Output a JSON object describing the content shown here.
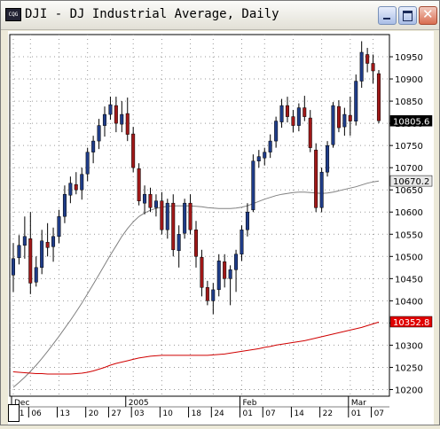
{
  "window": {
    "icon_label": "CQG",
    "title": "DJI - DJ Industrial Average, Daily"
  },
  "chart_data": {
    "type": "candlestick",
    "symbol": "DJI",
    "title": "DJ Industrial Average, Daily",
    "price_axis": {
      "ticks": [
        "10950",
        "10900",
        "10850",
        "10800",
        "10750",
        "10700",
        "10650",
        "10600",
        "10550",
        "10500",
        "10450",
        "10400",
        "10350",
        "10300",
        "10250",
        "10200"
      ],
      "ylim": [
        10185,
        11000
      ],
      "side": "right"
    },
    "last_price": "10805.6",
    "markers": [
      {
        "label": "10670.2",
        "value": 10670.2,
        "color": "#e8e8e8",
        "text_color": "#000000"
      },
      {
        "label": "10352.8",
        "value": 10352.8,
        "color": "#e00000",
        "text_color": "#ffffff"
      }
    ],
    "time_axis": {
      "months": [
        {
          "label": "Dec",
          "index": 0
        },
        {
          "label": "2005",
          "index": 20
        },
        {
          "label": "Feb",
          "index": 40
        },
        {
          "label": "Mar",
          "index": 59
        }
      ],
      "days": [
        {
          "label": "01",
          "index": 0
        },
        {
          "label": "06",
          "index": 3
        },
        {
          "label": "13",
          "index": 8
        },
        {
          "label": "20",
          "index": 13
        },
        {
          "label": "27",
          "index": 17
        },
        {
          "label": "03",
          "index": 21
        },
        {
          "label": "10",
          "index": 26
        },
        {
          "label": "18",
          "index": 31
        },
        {
          "label": "24",
          "index": 35
        },
        {
          "label": "01",
          "index": 40
        },
        {
          "label": "07",
          "index": 44
        },
        {
          "label": "14",
          "index": 49
        },
        {
          "label": "22",
          "index": 54
        },
        {
          "label": "01",
          "index": 59
        },
        {
          "label": "07",
          "index": 63
        }
      ]
    },
    "bar_count": 65,
    "bull_color": "#1f3c88",
    "bear_color": "#a01818",
    "ohlc": [
      [
        10458,
        10530,
        10420,
        10495
      ],
      [
        10497,
        10548,
        10482,
        10525
      ],
      [
        10525,
        10590,
        10495,
        10545
      ],
      [
        10540,
        10600,
        10415,
        10440
      ],
      [
        10442,
        10500,
        10432,
        10475
      ],
      [
        10475,
        10560,
        10460,
        10535
      ],
      [
        10532,
        10575,
        10500,
        10520
      ],
      [
        10522,
        10565,
        10488,
        10545
      ],
      [
        10545,
        10605,
        10530,
        10590
      ],
      [
        10590,
        10660,
        10575,
        10640
      ],
      [
        10638,
        10680,
        10620,
        10665
      ],
      [
        10662,
        10690,
        10640,
        10650
      ],
      [
        10650,
        10700,
        10628,
        10685
      ],
      [
        10686,
        10745,
        10670,
        10735
      ],
      [
        10735,
        10772,
        10710,
        10760
      ],
      [
        10760,
        10810,
        10742,
        10795
      ],
      [
        10795,
        10838,
        10770,
        10820
      ],
      [
        10820,
        10860,
        10808,
        10842
      ],
      [
        10840,
        10860,
        10780,
        10800
      ],
      [
        10798,
        10850,
        10780,
        10820
      ],
      [
        10822,
        10858,
        10760,
        10775
      ],
      [
        10776,
        10792,
        10690,
        10700
      ],
      [
        10698,
        10710,
        10615,
        10625
      ],
      [
        10620,
        10660,
        10595,
        10640
      ],
      [
        10640,
        10655,
        10600,
        10610
      ],
      [
        10610,
        10640,
        10590,
        10625
      ],
      [
        10625,
        10645,
        10550,
        10560
      ],
      [
        10560,
        10630,
        10540,
        10620
      ],
      [
        10620,
        10640,
        10500,
        10515
      ],
      [
        10513,
        10570,
        10475,
        10550
      ],
      [
        10552,
        10630,
        10540,
        10620
      ],
      [
        10620,
        10640,
        10550,
        10560
      ],
      [
        10560,
        10580,
        10475,
        10500
      ],
      [
        10498,
        10515,
        10410,
        10430
      ],
      [
        10430,
        10445,
        10390,
        10400
      ],
      [
        10400,
        10440,
        10370,
        10425
      ],
      [
        10425,
        10505,
        10410,
        10490
      ],
      [
        10488,
        10505,
        10430,
        10450
      ],
      [
        10450,
        10480,
        10390,
        10470
      ],
      [
        10470,
        10515,
        10420,
        10505
      ],
      [
        10505,
        10570,
        10490,
        10560
      ],
      [
        10560,
        10620,
        10545,
        10600
      ],
      [
        10605,
        10730,
        10600,
        10715
      ],
      [
        10715,
        10740,
        10700,
        10725
      ],
      [
        10722,
        10745,
        10705,
        10735
      ],
      [
        10735,
        10775,
        10722,
        10760
      ],
      [
        10760,
        10815,
        10745,
        10805
      ],
      [
        10803,
        10855,
        10790,
        10840
      ],
      [
        10840,
        10860,
        10802,
        10815
      ],
      [
        10815,
        10830,
        10780,
        10795
      ],
      [
        10795,
        10845,
        10782,
        10835
      ],
      [
        10835,
        10862,
        10805,
        10815
      ],
      [
        10812,
        10830,
        10735,
        10745
      ],
      [
        10740,
        10755,
        10600,
        10610
      ],
      [
        10610,
        10700,
        10600,
        10690
      ],
      [
        10690,
        10760,
        10680,
        10750
      ],
      [
        10752,
        10848,
        10745,
        10840
      ],
      [
        10838,
        10852,
        10780,
        10790
      ],
      [
        10792,
        10835,
        10772,
        10820
      ],
      [
        10818,
        10860,
        10772,
        10805
      ],
      [
        10805,
        10910,
        10795,
        10895
      ],
      [
        10895,
        10985,
        10880,
        10960
      ],
      [
        10955,
        10970,
        10915,
        10935
      ],
      [
        10935,
        10955,
        10890,
        10918
      ],
      [
        10912,
        10920,
        10800,
        10806
      ]
    ],
    "ma_gray": [
      10205,
      10216,
      10228,
      10241,
      10255,
      10270,
      10286,
      10303,
      10320,
      10338,
      10356,
      10375,
      10395,
      10416,
      10437,
      10459,
      10481,
      10503,
      10524,
      10545,
      10563,
      10578,
      10590,
      10598,
      10604,
      10608,
      10611,
      10613,
      10614,
      10614,
      10614,
      10614,
      10613,
      10612,
      10610,
      10609,
      10608,
      10608,
      10608,
      10609,
      10611,
      10614,
      10619,
      10624,
      10629,
      10633,
      10637,
      10640,
      10642,
      10644,
      10645,
      10645,
      10644,
      10643,
      10642,
      10643,
      10645,
      10648,
      10651,
      10654,
      10657,
      10661,
      10665,
      10668,
      10670
    ],
    "ma_red": [
      10240,
      10239,
      10238,
      10237,
      10236,
      10236,
      10235,
      10235,
      10235,
      10235,
      10235,
      10236,
      10237,
      10239,
      10242,
      10246,
      10250,
      10255,
      10259,
      10262,
      10265,
      10268,
      10271,
      10273,
      10275,
      10276,
      10277,
      10277,
      10277,
      10277,
      10277,
      10277,
      10277,
      10277,
      10277,
      10278,
      10279,
      10280,
      10282,
      10284,
      10286,
      10288,
      10290,
      10292,
      10295,
      10297,
      10300,
      10302,
      10304,
      10306,
      10308,
      10310,
      10313,
      10316,
      10319,
      10322,
      10325,
      10328,
      10331,
      10334,
      10337,
      10340,
      10344,
      10348,
      10352
    ]
  }
}
